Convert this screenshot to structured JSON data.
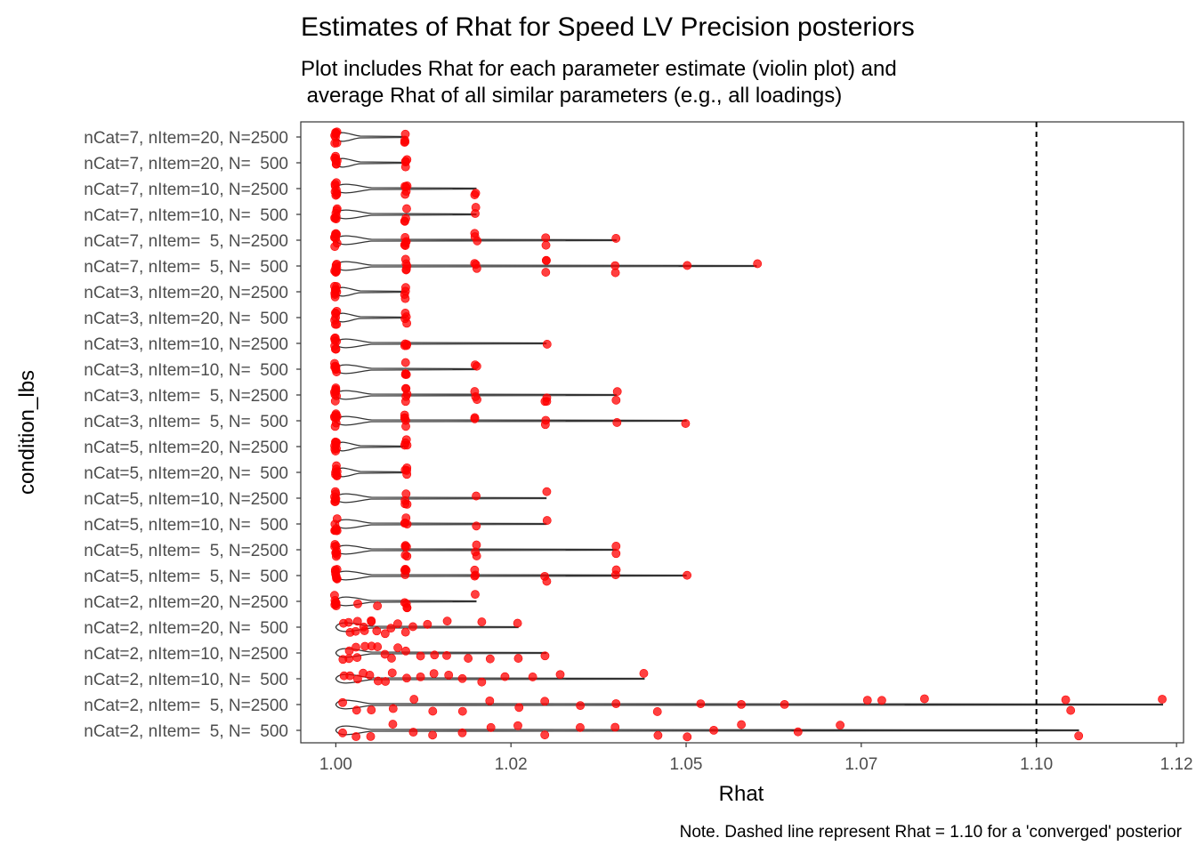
{
  "chart_data": {
    "type": "violin",
    "title": "Estimates of Rhat for Speed LV Precision posteriors",
    "subtitle_lines": [
      "Plot includes Rhat for each parameter estimate (violin plot) and",
      " average Rhat of all similar parameters (e.g., all loadings)"
    ],
    "xlabel": "Rhat",
    "ylabel": "condition_lbs",
    "caption": "Note. Dashed line represent Rhat = 1.10 for a 'converged' posterior",
    "xlim": [
      0.995,
      1.121
    ],
    "x_ticks": [
      1.0,
      1.025,
      1.05,
      1.075,
      1.1,
      1.12
    ],
    "x_tick_labels": [
      "1.00",
      "1.02",
      "1.05",
      "1.07",
      "1.10",
      "1.12"
    ],
    "reference_line": {
      "x": 1.1,
      "style": "dashed",
      "color": "#000000"
    },
    "point_color": "#ff0000",
    "violin_color": "#333333",
    "categories": [
      "nCat=7, nItem=20, N=2500",
      "nCat=7, nItem=20, N=  500",
      "nCat=7, nItem=10, N=2500",
      "nCat=7, nItem=10, N=  500",
      "nCat=7, nItem=  5, N=2500",
      "nCat=7, nItem=  5, N=  500",
      "nCat=3, nItem=20, N=2500",
      "nCat=3, nItem=20, N=  500",
      "nCat=3, nItem=10, N=2500",
      "nCat=3, nItem=10, N=  500",
      "nCat=3, nItem=  5, N=2500",
      "nCat=3, nItem=  5, N=  500",
      "nCat=5, nItem=20, N=2500",
      "nCat=5, nItem=20, N=  500",
      "nCat=5, nItem=10, N=2500",
      "nCat=5, nItem=10, N=  500",
      "nCat=5, nItem=  5, N=2500",
      "nCat=5, nItem=  5, N=  500",
      "nCat=2, nItem=20, N=2500",
      "nCat=2, nItem=20, N=  500",
      "nCat=2, nItem=10, N=2500",
      "nCat=2, nItem=10, N=  500",
      "nCat=2, nItem=  5, N=2500",
      "nCat=2, nItem=  5, N=  500"
    ],
    "series": [
      {
        "category": "nCat=7, nItem=20, N=2500",
        "range": [
          1.0,
          1.01
        ],
        "values": [
          1.0,
          1.0,
          1.0,
          1.0,
          1.0,
          1.0,
          1.0,
          1.0,
          1.01,
          1.01,
          1.01,
          1.01
        ]
      },
      {
        "category": "nCat=7, nItem=20, N=  500",
        "range": [
          1.0,
          1.01
        ],
        "values": [
          1.0,
          1.0,
          1.0,
          1.0,
          1.0,
          1.0,
          1.0,
          1.01,
          1.01,
          1.01,
          1.01
        ]
      },
      {
        "category": "nCat=7, nItem=10, N=2500",
        "range": [
          1.0,
          1.02
        ],
        "values": [
          1.0,
          1.0,
          1.0,
          1.0,
          1.0,
          1.0,
          1.0,
          1.0,
          1.01,
          1.01,
          1.01,
          1.01,
          1.01,
          1.02,
          1.02
        ]
      },
      {
        "category": "nCat=7, nItem=10, N=  500",
        "range": [
          1.0,
          1.02
        ],
        "values": [
          1.0,
          1.0,
          1.0,
          1.0,
          1.0,
          1.0,
          1.0,
          1.01,
          1.01,
          1.01,
          1.01,
          1.02,
          1.02
        ]
      },
      {
        "category": "nCat=7, nItem=  5, N=2500",
        "range": [
          1.0,
          1.04
        ],
        "values": [
          1.0,
          1.0,
          1.0,
          1.0,
          1.0,
          1.0,
          1.0,
          1.0,
          1.01,
          1.01,
          1.01,
          1.01,
          1.01,
          1.02,
          1.02,
          1.02,
          1.03,
          1.03,
          1.04
        ]
      },
      {
        "category": "nCat=7, nItem=  5, N=  500",
        "range": [
          1.0,
          1.06
        ],
        "values": [
          1.0,
          1.0,
          1.0,
          1.0,
          1.0,
          1.0,
          1.0,
          1.0,
          1.01,
          1.01,
          1.01,
          1.01,
          1.01,
          1.02,
          1.02,
          1.02,
          1.03,
          1.03,
          1.03,
          1.04,
          1.04,
          1.05,
          1.06
        ]
      },
      {
        "category": "nCat=3, nItem=20, N=2500",
        "range": [
          1.0,
          1.01
        ],
        "values": [
          1.0,
          1.0,
          1.0,
          1.0,
          1.0,
          1.0,
          1.0,
          1.0,
          1.01,
          1.01,
          1.01,
          1.01
        ]
      },
      {
        "category": "nCat=3, nItem=20, N=  500",
        "range": [
          1.0,
          1.01
        ],
        "values": [
          1.0,
          1.0,
          1.0,
          1.0,
          1.0,
          1.0,
          1.0,
          1.01,
          1.01,
          1.01,
          1.01
        ]
      },
      {
        "category": "nCat=3, nItem=10, N=2500",
        "range": [
          1.0,
          1.03
        ],
        "values": [
          1.0,
          1.0,
          1.0,
          1.0,
          1.0,
          1.0,
          1.0,
          1.01,
          1.01,
          1.01,
          1.01,
          1.03
        ]
      },
      {
        "category": "nCat=3, nItem=10, N=  500",
        "range": [
          1.0,
          1.02
        ],
        "values": [
          1.0,
          1.0,
          1.0,
          1.0,
          1.0,
          1.0,
          1.0,
          1.01,
          1.01,
          1.01,
          1.01,
          1.02,
          1.02
        ]
      },
      {
        "category": "nCat=3, nItem=  5, N=2500",
        "range": [
          1.0,
          1.04
        ],
        "values": [
          1.0,
          1.0,
          1.0,
          1.0,
          1.0,
          1.0,
          1.0,
          1.0,
          1.01,
          1.01,
          1.01,
          1.01,
          1.01,
          1.02,
          1.02,
          1.02,
          1.03,
          1.03,
          1.03,
          1.04,
          1.04
        ]
      },
      {
        "category": "nCat=3, nItem=  5, N=  500",
        "range": [
          1.0,
          1.05
        ],
        "values": [
          1.0,
          1.0,
          1.0,
          1.0,
          1.0,
          1.0,
          1.0,
          1.0,
          1.01,
          1.01,
          1.01,
          1.01,
          1.01,
          1.02,
          1.02,
          1.03,
          1.03,
          1.04,
          1.05
        ]
      },
      {
        "category": "nCat=5, nItem=20, N=2500",
        "range": [
          1.0,
          1.01
        ],
        "values": [
          1.0,
          1.0,
          1.0,
          1.0,
          1.0,
          1.0,
          1.0,
          1.0,
          1.01,
          1.01,
          1.01,
          1.01
        ]
      },
      {
        "category": "nCat=5, nItem=20, N=  500",
        "range": [
          1.0,
          1.01
        ],
        "values": [
          1.0,
          1.0,
          1.0,
          1.0,
          1.0,
          1.0,
          1.0,
          1.01,
          1.01,
          1.01,
          1.01
        ]
      },
      {
        "category": "nCat=5, nItem=10, N=2500",
        "range": [
          1.0,
          1.03
        ],
        "values": [
          1.0,
          1.0,
          1.0,
          1.0,
          1.0,
          1.0,
          1.0,
          1.01,
          1.01,
          1.01,
          1.01,
          1.02,
          1.03
        ]
      },
      {
        "category": "nCat=5, nItem=10, N=  500",
        "range": [
          1.0,
          1.03
        ],
        "values": [
          1.0,
          1.0,
          1.0,
          1.0,
          1.0,
          1.0,
          1.0,
          1.01,
          1.01,
          1.01,
          1.01,
          1.02,
          1.03
        ]
      },
      {
        "category": "nCat=5, nItem=  5, N=2500",
        "range": [
          1.0,
          1.04
        ],
        "values": [
          1.0,
          1.0,
          1.0,
          1.0,
          1.0,
          1.0,
          1.0,
          1.0,
          1.01,
          1.01,
          1.01,
          1.01,
          1.01,
          1.02,
          1.02,
          1.02,
          1.04,
          1.04
        ]
      },
      {
        "category": "nCat=5, nItem=  5, N=  500",
        "range": [
          1.0,
          1.05
        ],
        "values": [
          1.0,
          1.0,
          1.0,
          1.0,
          1.0,
          1.0,
          1.0,
          1.0,
          1.01,
          1.01,
          1.01,
          1.01,
          1.01,
          1.02,
          1.02,
          1.02,
          1.03,
          1.03,
          1.04,
          1.04,
          1.05
        ]
      },
      {
        "category": "nCat=2, nItem=20, N=2500",
        "range": [
          1.0,
          1.02
        ],
        "values": [
          1.0,
          1.0,
          1.0,
          1.0,
          1.0,
          1.0,
          1.0,
          1.003,
          1.006,
          1.01,
          1.01,
          1.01,
          1.01,
          1.02
        ]
      },
      {
        "category": "nCat=2, nItem=20, N=  500",
        "range": [
          1.0,
          1.026
        ],
        "values": [
          1.001,
          1.002,
          1.002,
          1.003,
          1.003,
          1.004,
          1.004,
          1.005,
          1.005,
          1.006,
          1.007,
          1.008,
          1.009,
          1.01,
          1.011,
          1.013,
          1.016,
          1.021,
          1.026
        ]
      },
      {
        "category": "nCat=2, nItem=10, N=2500",
        "range": [
          1.0,
          1.03
        ],
        "values": [
          1.001,
          1.002,
          1.002,
          1.003,
          1.003,
          1.004,
          1.005,
          1.006,
          1.007,
          1.008,
          1.009,
          1.01,
          1.012,
          1.014,
          1.016,
          1.019,
          1.022,
          1.026,
          1.03
        ]
      },
      {
        "category": "nCat=2, nItem=10, N=  500",
        "range": [
          1.0,
          1.044
        ],
        "values": [
          1.001,
          1.002,
          1.003,
          1.004,
          1.005,
          1.006,
          1.007,
          1.008,
          1.01,
          1.012,
          1.014,
          1.016,
          1.018,
          1.021,
          1.024,
          1.028,
          1.032,
          1.044
        ]
      },
      {
        "category": "nCat=2, nItem=  5, N=2500",
        "range": [
          1.0,
          1.118
        ],
        "values": [
          1.001,
          1.003,
          1.005,
          1.008,
          1.011,
          1.014,
          1.018,
          1.022,
          1.026,
          1.03,
          1.035,
          1.04,
          1.046,
          1.052,
          1.058,
          1.064,
          1.076,
          1.078,
          1.084,
          1.104,
          1.105,
          1.118
        ]
      },
      {
        "category": "nCat=2, nItem=  5, N=  500",
        "range": [
          1.0,
          1.106
        ],
        "values": [
          1.001,
          1.003,
          1.005,
          1.008,
          1.011,
          1.014,
          1.018,
          1.022,
          1.026,
          1.03,
          1.035,
          1.04,
          1.046,
          1.05,
          1.054,
          1.058,
          1.066,
          1.072,
          1.106
        ]
      }
    ]
  }
}
